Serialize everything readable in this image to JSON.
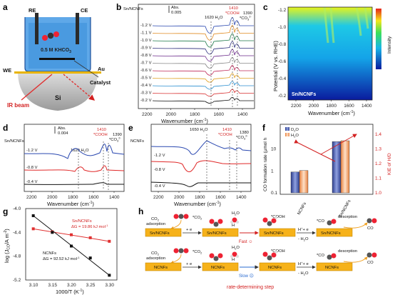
{
  "panels": {
    "a": {
      "letter": "a",
      "re": "RE",
      "ce": "CE",
      "electrolyte": "0.5 M KHCO",
      "electrolyte_sub": "3",
      "we": "WE",
      "au": "Au",
      "si": "Si",
      "catalyst": "Catalyst",
      "ir_beam": "IR beam"
    },
    "b": {
      "letter": "b",
      "tag": "Sn/NCNFs",
      "abs_label": "Abs.",
      "abs_value": "0.005",
      "ann_1620": "1620 H",
      "ann_1620b": "2",
      "ann_1620c": "O",
      "ann_1410": "1410",
      "ann_cooh": "*COOH",
      "ann_1390": "1390",
      "ann_co3": "*CO",
      "ann_co3_sub": "3",
      "ann_co3_sup": "2-",
      "potentials": [
        "-1.2 V",
        "-1.1 V",
        "-1.0 V",
        "-0.9 V",
        "-0.8 V",
        "-0.7 V",
        "-0.6 V",
        "-0.5 V",
        "-0.4 V",
        "-0.3 V",
        "-0.2 V"
      ],
      "xticks": [
        "2200",
        "2000",
        "1800",
        "1600",
        "1400"
      ],
      "xlabel": "Wavenumber (cm",
      "xlabel_sup": "-1",
      "xlabel_end": ")"
    },
    "c": {
      "letter": "c",
      "tag": "Sn/NCNFs",
      "ylabel": "Potential (V vs. RHE)",
      "yticks": [
        "-1.2",
        "-1.0",
        "-0.8",
        "-0.6",
        "-0.4",
        "-0.2"
      ],
      "xticks": [
        "2200",
        "2000",
        "1800",
        "1600",
        "1400"
      ],
      "xlabel": "Wavenumber (cm",
      "xlabel_sup": "-1",
      "xlabel_end": ")",
      "intensity": "Intensity"
    },
    "d": {
      "letter": "d",
      "tag": "Sn/NCNFs",
      "abs_label": "Abs.",
      "abs_value": "0.004",
      "ann_1620": "1620 H",
      "ann_1620b": "2",
      "ann_1620c": "O",
      "ann_1410": "1410",
      "ann_cooh": "*COOH",
      "ann_1390": "1390",
      "ann_co3": "*CO",
      "ann_co3_sub": "3",
      "ann_co3_sup": "2-",
      "potentials": [
        "-1.2 V",
        "-0.8 V",
        "-0.4 V"
      ],
      "xticks": [
        "2200",
        "2000",
        "1800",
        "1600",
        "1400"
      ],
      "xlabel": "Wavenumber (cm",
      "xlabel_sup": "-1",
      "xlabel_end": ")"
    },
    "e": {
      "letter": "e",
      "tag": "NCNFs",
      "ann_1650": "1650 H",
      "ann_1650b": "2",
      "ann_1650c": "O",
      "ann_1410": "1410",
      "ann_cooh": "*COOH",
      "ann_1380": "1380",
      "ann_co3": "*CO",
      "ann_co3_sub": "3",
      "ann_co3_sup": "2-",
      "potentials": [
        "-1.2 V",
        "-0.8 V",
        "-0.4 V"
      ],
      "xticks": [
        "2200",
        "2000",
        "1800",
        "1600",
        "1400"
      ],
      "xlabel": "Wavenumber (cm",
      "xlabel_sup": "-1",
      "xlabel_end": ")"
    },
    "f": {
      "letter": "f",
      "legend_d2o": "D",
      "legend_d2o_sub": "2",
      "legend_d2o_end": "O",
      "legend_h2o": "H",
      "legend_h2o_sub": "2",
      "legend_h2o_end": "O",
      "ylabel_left": "CO formation rate (µmol h",
      "ylabel_right": "KIE of H/D",
      "yticks_left": [
        "0.1",
        "1",
        "10"
      ],
      "yticks_right": [
        "1.0",
        "1.1",
        "1.2",
        "1.3",
        "1.4"
      ],
      "categories": [
        "NCNFs",
        "Sn/NCNFs"
      ]
    },
    "g": {
      "letter": "g",
      "ylabel": "log (J",
      "ylabel_sub": "CO",
      "ylabel_end": "/A m",
      "ylabel_sup": "-2",
      "ylabel_close": ")",
      "xlabel": "1000/T (K",
      "xlabel_sup": "-1",
      "xlabel_end": ")",
      "yticks": [
        "-4.0",
        "-4.4",
        "-4.8",
        "-5.2"
      ],
      "xticks": [
        "3.10",
        "3.15",
        "3.20",
        "3.25",
        "3.30"
      ],
      "sn_label": "Sn/NCNFs",
      "sn_dg": "ΔG = 19.86 kJ mol",
      "sn_dg_sup": "-1",
      "nc_label": "NCNFs",
      "nc_dg": "ΔG = 92.52 kJ mol",
      "nc_dg_sup": "-1"
    },
    "h": {
      "letter": "h",
      "co2_adsorption": "CO",
      "co2_adsorption_sub": "2",
      "co2_adsorption_end": "adsorption",
      "sn_boxes": [
        "Sn/NCNFs",
        "Sn/NCNFs",
        "Sn/NCNFs",
        "Sn/NCNFs"
      ],
      "nc_boxes": [
        "NCNFs",
        "NCNFs",
        "NCNFs",
        "NCNFs"
      ],
      "e_step": "+ e",
      "co2_star": "*CO",
      "co2_star_sub": "2",
      "h2o": "H",
      "h2o_sub": "2",
      "h2o_end": "O",
      "h_plus": "H",
      "cooh": "*COOH",
      "co_star": "*CO",
      "fast": "Fast ☺",
      "slow": "Slow ☹",
      "hplus_e": "H",
      "hplus_e_end": "+ e",
      "minus_h2o": "- H",
      "minus_h2o_end": "O",
      "desorption": "desorption",
      "co": "CO",
      "rds": "rate-determining step"
    }
  },
  "chart_data": [
    {
      "type": "line",
      "panel": "g",
      "title": "",
      "xlabel": "1000/T (K-1)",
      "ylabel": "log (JCO/A m-2)",
      "xlim": [
        3.08,
        3.32
      ],
      "ylim": [
        -5.2,
        -4.0
      ],
      "series": [
        {
          "name": "Sn/NCNFs",
          "color": "#e03030",
          "x": [
            3.1,
            3.15,
            3.2,
            3.25,
            3.3
          ],
          "y": [
            -4.34,
            -4.39,
            -4.44,
            -4.49,
            -4.55
          ]
        },
        {
          "name": "NCNFs",
          "color": "#111111",
          "x": [
            3.1,
            3.15,
            3.2,
            3.25,
            3.3
          ],
          "y": [
            -4.12,
            -4.4,
            -4.63,
            -4.83,
            -5.12
          ]
        }
      ]
    },
    {
      "type": "bar",
      "panel": "f",
      "categories": [
        "NCNFs",
        "Sn/NCNFs"
      ],
      "series": [
        {
          "name": "D2O",
          "color": "#4a5fb4",
          "values": [
            0.9,
            22
          ]
        },
        {
          "name": "H2O",
          "color": "#f0a070",
          "values": [
            1.05,
            24
          ]
        }
      ],
      "kie": [
        1.12,
        1.4
      ],
      "ylim_left": [
        0.1,
        100
      ],
      "ylim_right": [
        1.0,
        1.45
      ]
    }
  ]
}
